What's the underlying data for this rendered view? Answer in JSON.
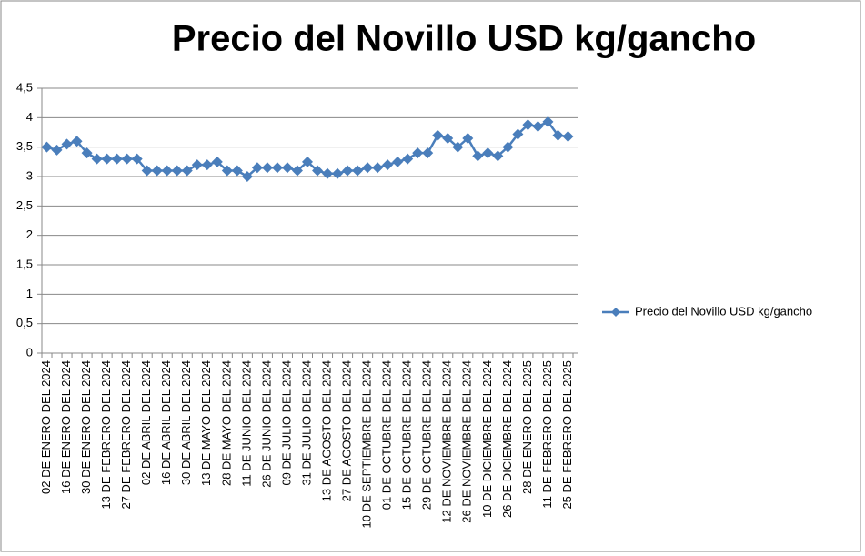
{
  "chart_data": {
    "type": "line",
    "title": "Precio del Novillo USD kg/gancho",
    "categories": [
      "02 DE ENERO DEL 2024",
      null,
      "16 DE ENERO  DEL 2024",
      null,
      "30 DE ENERO  DEL 2024",
      null,
      "13 DE FEBRERO  DEL 2024",
      null,
      "27 DE FEBRERO  DEL 2024",
      null,
      "02 DE ABRIL  DEL 2024",
      null,
      "16 DE ABRIL  DEL 2024",
      null,
      "30 DE ABRIL  DEL 2024",
      null,
      "13 DE MAYO  DEL 2024",
      null,
      "28 DE MAYO  DEL 2024",
      null,
      "11 DE JUNIO DEL 2024",
      null,
      "26 DE JUNIO  DEL 2024",
      null,
      "09 DE JULIO  DEL 2024",
      null,
      "31 DE JULIO DEL 2024",
      null,
      "13 DE AGOSTO  DEL 2024",
      null,
      "27 DE AGOSTO  DEL 2024",
      null,
      "10 DE SEPTIEMBRE DEL 2024",
      null,
      "01 DE OCTUBRE  DEL 2024",
      null,
      "15 DE OCTUBRE  DEL 2024",
      null,
      "29 DE OCTUBRE  DEL 2024",
      null,
      "12 DE NOVIEMBRE DEL 2024",
      null,
      "26 DE NOVIEMBRE DEL 2024",
      null,
      "10 DE DICIEMBRE  DEL 2024",
      null,
      "26  DE DICIEMBRE  DEL 2024",
      null,
      "28 DE ENERO DEL 2025",
      null,
      "11 DE FEBRERO DEL 2025",
      null,
      "25 DE FEBRERO DEL 2025"
    ],
    "series": [
      {
        "name": "Precio del Novillo USD kg/gancho",
        "color": "#4a7ebb",
        "values": [
          3.5,
          3.45,
          3.55,
          3.6,
          3.4,
          3.3,
          3.3,
          3.3,
          3.3,
          3.3,
          3.1,
          3.1,
          3.1,
          3.1,
          3.1,
          3.2,
          3.2,
          3.25,
          3.1,
          3.1,
          3.0,
          3.15,
          3.15,
          3.15,
          3.15,
          3.1,
          3.25,
          3.1,
          3.05,
          3.05,
          3.1,
          3.1,
          3.15,
          3.15,
          3.2,
          3.25,
          3.3,
          3.4,
          3.4,
          3.7,
          3.65,
          3.5,
          3.65,
          3.35,
          3.4,
          3.35,
          3.5,
          3.72,
          3.88,
          3.85,
          3.93,
          3.7,
          3.68
        ]
      }
    ],
    "ylim": [
      0,
      4.5
    ],
    "yticks": [
      0,
      {
        "value": 0.5,
        "label": "0,5"
      },
      1,
      {
        "value": 1.5,
        "label": "1,5"
      },
      2,
      {
        "value": 2.5,
        "label": "2,5"
      },
      3,
      {
        "value": 3.5,
        "label": "3,5"
      },
      4,
      {
        "value": 4.5,
        "label": "4,5"
      }
    ],
    "grid": true,
    "legend": "right"
  }
}
